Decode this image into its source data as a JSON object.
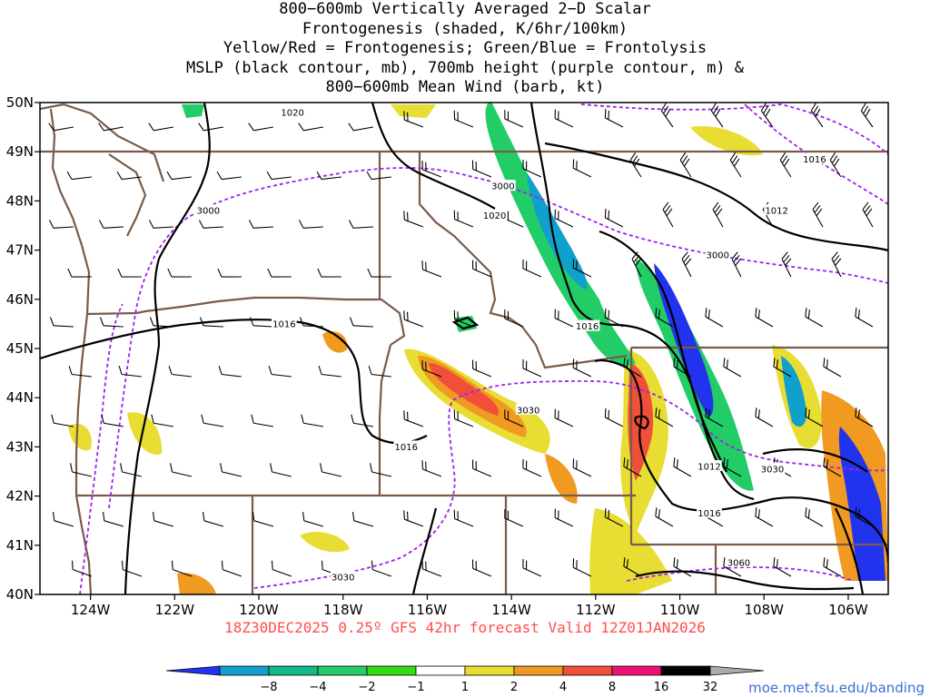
{
  "title_lines": [
    "800−600mb Vertically Averaged 2−D Scalar",
    "Frontogenesis (shaded, K/6hr/100km)",
    "Yellow/Red = Frontogenesis;  Green/Blue = Frontolysis",
    "MSLP (black contour, mb), 700mb height (purple contour, m) &",
    "800−600mb Mean Wind (barb, kt)"
  ],
  "valid_line": "18Z30DEC2025 0.25º GFS 42hr forecast Valid 12Z01JAN2026",
  "credit": "moe.met.fsu.edu/banding",
  "axes": {
    "lat_labels": [
      "50N",
      "49N",
      "48N",
      "47N",
      "46N",
      "45N",
      "44N",
      "43N",
      "42N",
      "41N",
      "40N"
    ],
    "lat_values": [
      50,
      49,
      48,
      47,
      46,
      45,
      44,
      43,
      42,
      41,
      40
    ],
    "lon_labels": [
      "124W",
      "122W",
      "120W",
      "118W",
      "116W",
      "114W",
      "112W",
      "110W",
      "108W",
      "106W"
    ],
    "lon_values": [
      -124,
      -122,
      -120,
      -118,
      -116,
      -114,
      -112,
      -110,
      -108,
      -106
    ],
    "extent": {
      "lon_min": -125.2,
      "lon_max": -105.05,
      "lat_min": 40,
      "lat_max": 50
    }
  },
  "contour_labels": {
    "mslp": [
      {
        "text": "1020",
        "lon": -119.2,
        "lat": 49.8
      },
      {
        "text": "1020",
        "lon": -114.4,
        "lat": 47.7
      },
      {
        "text": "1016",
        "lon": -106.8,
        "lat": 48.85
      },
      {
        "text": "1012",
        "lon": -107.7,
        "lat": 47.8
      },
      {
        "text": "1016",
        "lon": -119.4,
        "lat": 45.5
      },
      {
        "text": "1016",
        "lon": -112.2,
        "lat": 45.45
      },
      {
        "text": "1016",
        "lon": -116.5,
        "lat": 43.0
      },
      {
        "text": "1012",
        "lon": -109.3,
        "lat": 42.6
      },
      {
        "text": "1016",
        "lon": -109.3,
        "lat": 41.65
      }
    ],
    "height700": [
      {
        "text": "3000",
        "lon": -121.2,
        "lat": 47.8
      },
      {
        "text": "3000",
        "lon": -114.2,
        "lat": 48.3
      },
      {
        "text": "3000",
        "lon": -109.1,
        "lat": 46.9
      },
      {
        "text": "3030",
        "lon": -113.6,
        "lat": 43.75
      },
      {
        "text": "3030",
        "lon": -107.8,
        "lat": 42.55
      },
      {
        "text": "3030",
        "lon": -118.0,
        "lat": 40.35
      },
      {
        "text": "3060",
        "lon": -108.6,
        "lat": 40.65
      }
    ]
  },
  "colorbar": {
    "levels": [
      "−8",
      "−4",
      "−2",
      "−1",
      "1",
      "2",
      "4",
      "8",
      "16",
      "32"
    ],
    "colors": [
      "#2233ee",
      "#11a0cc",
      "#11b88a",
      "#22cc66",
      "#33dd11",
      "#ffffff",
      "#e8dd33",
      "#f09a22",
      "#f0503a",
      "#ee1177",
      "#000000",
      "#aaaaaa"
    ]
  },
  "colors": {
    "mslp": "#000000",
    "height700": "#a020f0",
    "borders": "#7a5a48",
    "barbs": "#000000"
  }
}
